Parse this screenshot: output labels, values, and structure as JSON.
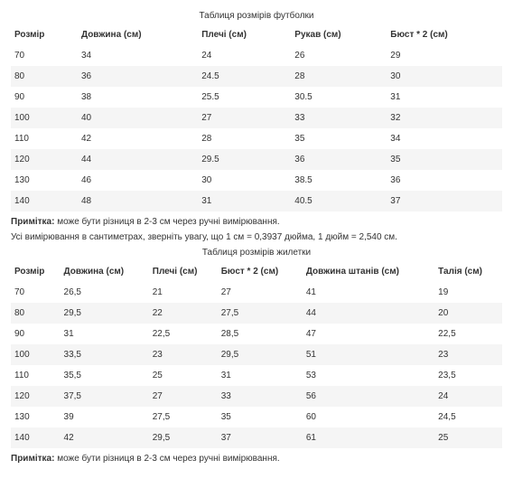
{
  "tshirt_table": {
    "title": "Таблиця розмірів футболки",
    "columns": [
      "Розмір",
      "Довжина (см)",
      "Плечі (см)",
      "Рукав (см)",
      "Бюст * 2 (см)"
    ],
    "rows": [
      [
        "70",
        "34",
        "24",
        "26",
        "29"
      ],
      [
        "80",
        "36",
        "24.5",
        "28",
        "30"
      ],
      [
        "90",
        "38",
        "25.5",
        "30.5",
        "31"
      ],
      [
        "100",
        "40",
        "27",
        "33",
        "32"
      ],
      [
        "110",
        "42",
        "28",
        "35",
        "34"
      ],
      [
        "120",
        "44",
        "29.5",
        "36",
        "35"
      ],
      [
        "130",
        "46",
        "30",
        "38.5",
        "36"
      ],
      [
        "140",
        "48",
        "31",
        "40.5",
        "37"
      ]
    ]
  },
  "note1": {
    "label": "Примітка:",
    "text": " може бути різниця в 2-3 см через ручні вимірювання."
  },
  "info_text": "Усі вимірювання в сантиметрах, зверніть увагу, що 1 см = 0,3937 дюйма, 1 дюйм = 2,540 см.",
  "vest_table": {
    "title": "Таблиця розмірів жилетки",
    "columns": [
      "Розмір",
      "Довжина (см)",
      "Плечі (см)",
      "Бюст * 2 (см)",
      "Довжина штанів (см)",
      "Талія (см)"
    ],
    "rows": [
      [
        "70",
        "26,5",
        "21",
        "27",
        "41",
        "19"
      ],
      [
        "80",
        "29,5",
        "22",
        "27,5",
        "44",
        "20"
      ],
      [
        "90",
        "31",
        "22,5",
        "28,5",
        "47",
        "22,5"
      ],
      [
        "100",
        "33,5",
        "23",
        "29,5",
        "51",
        "23"
      ],
      [
        "110",
        "35,5",
        "25",
        "31",
        "53",
        "23,5"
      ],
      [
        "120",
        "37,5",
        "27",
        "33",
        "56",
        "24"
      ],
      [
        "130",
        "39",
        "27,5",
        "35",
        "60",
        "24,5"
      ],
      [
        "140",
        "42",
        "29,5",
        "37",
        "61",
        "25"
      ]
    ]
  },
  "note2": {
    "label": "Примітка:",
    "text": " може бути різниця в 2-3 см через ручні вимірювання."
  },
  "colors": {
    "background": "#ffffff",
    "text": "#333333",
    "alt_row": "#f5f5f5"
  }
}
